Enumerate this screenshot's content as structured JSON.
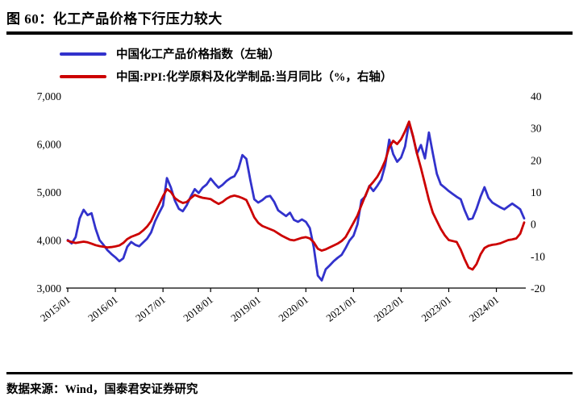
{
  "header": {
    "title": "图 60：化工产品价格下行压力较大"
  },
  "legend": [
    {
      "label": "中国化工产品价格指数（左轴）",
      "color": "#3232cc"
    },
    {
      "label": "中国:PPI:化学原料及化学制品:当月同比（%，右轴）",
      "color": "#cc0000"
    }
  ],
  "footer": {
    "source": "数据来源：Wind，国泰君安证券研究"
  },
  "chart_data": {
    "type": "line",
    "title": "化工产品价格下行压力较大",
    "x_start": "2015/01",
    "x_end": "2024/08",
    "months_per_tick": 12,
    "x_tick_labels": [
      "2015/01",
      "2016/01",
      "2017/01",
      "2018/01",
      "2019/01",
      "2020/01",
      "2021/01",
      "2022/01",
      "2023/01",
      "2024/01"
    ],
    "left_axis": {
      "label": "中国化工产品价格指数",
      "min": 3000,
      "max": 7000,
      "tick_values": [
        7000,
        6000,
        5000,
        4000,
        3000
      ],
      "tick_labels": [
        "7,000",
        "6,000",
        "5,000",
        "4,000",
        "3,000"
      ]
    },
    "right_axis": {
      "label": "PPI化学原料及化学制品当月同比(%)",
      "min": -20,
      "max": 40,
      "tick_values": [
        40,
        30,
        20,
        10,
        0,
        -10,
        -20
      ],
      "tick_labels": [
        "40",
        "30",
        "20",
        "10",
        "0",
        "-10",
        "-20"
      ]
    },
    "grid": false,
    "legend_position": "top-left",
    "series": [
      {
        "name": "中国化工产品价格指数（左轴）",
        "axis": "left",
        "color": "#3232cc",
        "values": [
          4000,
          3930,
          4060,
          4450,
          4630,
          4520,
          4560,
          4240,
          4000,
          3900,
          3790,
          3710,
          3640,
          3560,
          3620,
          3860,
          3960,
          3900,
          3870,
          3950,
          4030,
          4160,
          4390,
          4560,
          4720,
          5290,
          5090,
          4820,
          4650,
          4600,
          4730,
          4910,
          5060,
          4980,
          5090,
          5160,
          5280,
          5180,
          5090,
          5150,
          5230,
          5290,
          5330,
          5480,
          5770,
          5690,
          5250,
          4850,
          4780,
          4830,
          4900,
          4920,
          4800,
          4620,
          4560,
          4500,
          4570,
          4420,
          4380,
          4430,
          4380,
          4250,
          3850,
          3260,
          3160,
          3390,
          3470,
          3560,
          3630,
          3690,
          3830,
          3990,
          4090,
          4330,
          4830,
          4910,
          5130,
          5020,
          5130,
          5260,
          5560,
          6090,
          5790,
          5630,
          5720,
          5950,
          6450,
          6150,
          5800,
          5980,
          5700,
          6240,
          5800,
          5380,
          5160,
          5090,
          5020,
          4960,
          4900,
          4850,
          4620,
          4430,
          4450,
          4650,
          4900,
          5100,
          4880,
          4780,
          4730,
          4680,
          4640,
          4700,
          4760,
          4700,
          4640,
          4450
        ]
      },
      {
        "name": "中国:PPI:化学原料及化学制品:当月同比（%，右轴）",
        "axis": "right",
        "color": "#cc0000",
        "values": [
          -5.2,
          -5.6,
          -5.9,
          -5.7,
          -5.5,
          -5.7,
          -6.1,
          -6.6,
          -6.9,
          -7.1,
          -7.3,
          -7.2,
          -7.0,
          -6.7,
          -5.9,
          -4.7,
          -4.0,
          -3.5,
          -3.0,
          -2.0,
          -0.8,
          0.9,
          3.6,
          6.1,
          8.7,
          10.9,
          10.0,
          8.1,
          7.2,
          6.6,
          6.9,
          8.1,
          9.1,
          8.6,
          8.2,
          8.0,
          7.8,
          7.0,
          6.3,
          6.9,
          7.9,
          8.6,
          8.9,
          8.6,
          8.1,
          7.5,
          4.9,
          2.1,
          0.4,
          -0.6,
          -1.1,
          -1.6,
          -2.1,
          -2.9,
          -3.7,
          -4.3,
          -4.9,
          -5.1,
          -4.7,
          -4.3,
          -4.1,
          -4.5,
          -5.7,
          -7.7,
          -8.3,
          -7.9,
          -7.3,
          -6.7,
          -6.1,
          -5.3,
          -4.1,
          -1.9,
          0.4,
          2.7,
          5.9,
          8.9,
          11.8,
          13.2,
          14.8,
          17.0,
          19.8,
          24.0,
          26.0,
          25.0,
          26.5,
          29.0,
          32.0,
          27.5,
          22.0,
          17.5,
          12.5,
          7.5,
          3.5,
          1.0,
          -1.5,
          -3.5,
          -5.0,
          -5.3,
          -5.6,
          -8.0,
          -11.0,
          -13.6,
          -14.2,
          -12.5,
          -9.5,
          -7.5,
          -6.8,
          -6.5,
          -6.3,
          -6.0,
          -5.5,
          -5.0,
          -4.8,
          -4.5,
          -3.0,
          0.5
        ]
      }
    ]
  }
}
